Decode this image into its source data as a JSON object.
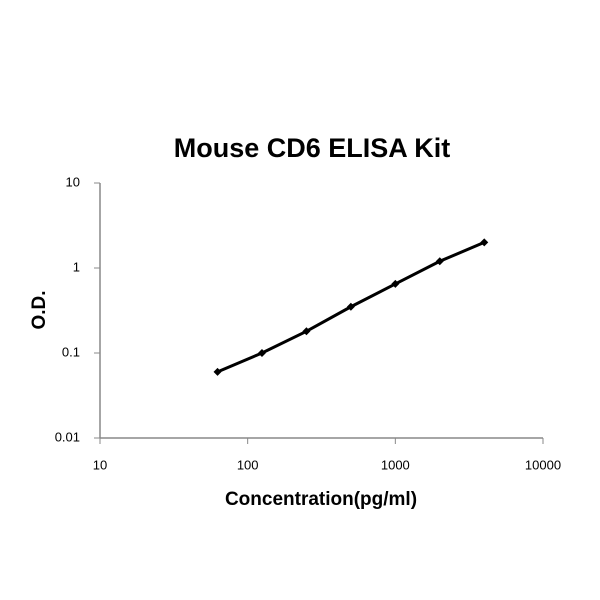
{
  "chart_data": {
    "type": "line",
    "title": "Mouse CD6 ELISA Kit",
    "x_label": "Concentration(pg/ml)",
    "y_label": "O.D.",
    "x": [
      62.5,
      125,
      250,
      500,
      1000,
      2000,
      4000
    ],
    "series": [
      {
        "color": "#000000",
        "values": [
          0.06,
          0.1,
          0.18,
          0.35,
          0.65,
          1.2,
          2
        ]
      }
    ],
    "x_scale": "log",
    "y_scale": "log",
    "xlim": [
      10,
      10000
    ],
    "xticks": [
      10,
      100,
      1000,
      10000
    ],
    "ylim": [
      0.01,
      10
    ],
    "yticks": [
      0.01,
      0.1,
      1,
      10
    ],
    "grid": false
  }
}
